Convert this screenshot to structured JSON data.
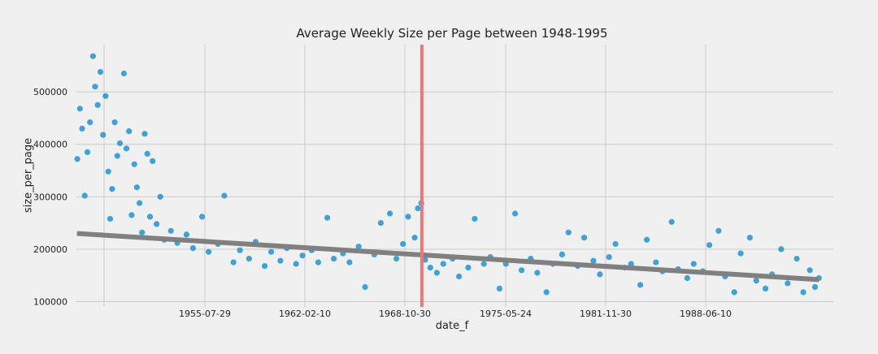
{
  "chart_data": {
    "type": "scatter",
    "title": "Average Weekly Size per Page between 1948-1995",
    "xlabel": "date_f",
    "ylabel": "size_per_page",
    "x_range": [
      "1947-12-01",
      "1996-05-01"
    ],
    "ylim": [
      90000,
      590000
    ],
    "x_tick_labels": [
      "1955-07-29",
      "1962-02-10",
      "1968-10-30",
      "1975-05-24",
      "1981-11-30",
      "1988-06-10"
    ],
    "y_tick_labels": [
      "100000",
      "200000",
      "300000",
      "400000",
      "500000"
    ],
    "y_ticks": [
      100000,
      200000,
      300000,
      400000,
      500000
    ],
    "grid": true,
    "vertical_line": {
      "x": "1970-01-15",
      "color": "#e8797a"
    },
    "trend_line": {
      "color": "#808080",
      "points": [
        {
          "x": "1948-01-01",
          "y": 230000
        },
        {
          "x": "1995-06-01",
          "y": 142000
        }
      ]
    },
    "scatter_color": "#1f94d3",
    "series": [
      {
        "points": [
          [
            "1948-01-10",
            372000
          ],
          [
            "1948-03-10",
            468000
          ],
          [
            "1948-05-01",
            430000
          ],
          [
            "1948-07-01",
            302000
          ],
          [
            "1948-09-01",
            385000
          ],
          [
            "1948-11-01",
            442000
          ],
          [
            "1949-01-10",
            568000
          ],
          [
            "1949-03-01",
            510000
          ],
          [
            "1949-05-01",
            475000
          ],
          [
            "1949-07-01",
            538000
          ],
          [
            "1949-09-01",
            418000
          ],
          [
            "1949-11-01",
            492000
          ],
          [
            "1950-01-01",
            348000
          ],
          [
            "1950-02-15",
            258000
          ],
          [
            "1950-04-01",
            315000
          ],
          [
            "1950-06-01",
            442000
          ],
          [
            "1950-08-01",
            378000
          ],
          [
            "1950-10-01",
            402000
          ],
          [
            "1951-01-01",
            535000
          ],
          [
            "1951-03-01",
            392000
          ],
          [
            "1951-05-01",
            425000
          ],
          [
            "1951-07-01",
            265000
          ],
          [
            "1951-09-01",
            362000
          ],
          [
            "1951-11-01",
            318000
          ],
          [
            "1952-01-01",
            288000
          ],
          [
            "1952-03-01",
            232000
          ],
          [
            "1952-05-01",
            420000
          ],
          [
            "1952-07-01",
            382000
          ],
          [
            "1952-09-01",
            262000
          ],
          [
            "1952-11-01",
            368000
          ],
          [
            "1953-02-01",
            248000
          ],
          [
            "1953-05-01",
            300000
          ],
          [
            "1953-08-01",
            218000
          ],
          [
            "1954-01-01",
            235000
          ],
          [
            "1954-06-01",
            212000
          ],
          [
            "1955-01-01",
            228000
          ],
          [
            "1955-06-01",
            202000
          ],
          [
            "1956-01-01",
            262000
          ],
          [
            "1956-06-01",
            195000
          ],
          [
            "1957-01-01",
            210000
          ],
          [
            "1957-06-01",
            302000
          ],
          [
            "1958-01-01",
            175000
          ],
          [
            "1958-06-01",
            198000
          ],
          [
            "1959-01-01",
            182000
          ],
          [
            "1959-06-01",
            214000
          ],
          [
            "1960-01-01",
            168000
          ],
          [
            "1960-06-01",
            195000
          ],
          [
            "1961-01-01",
            178000
          ],
          [
            "1961-06-01",
            202000
          ],
          [
            "1962-01-01",
            172000
          ],
          [
            "1962-06-01",
            188000
          ],
          [
            "1963-01-01",
            198000
          ],
          [
            "1963-06-01",
            175000
          ],
          [
            "1964-01-01",
            260000
          ],
          [
            "1964-06-01",
            182000
          ],
          [
            "1965-01-01",
            192000
          ],
          [
            "1965-06-01",
            175000
          ],
          [
            "1966-01-01",
            205000
          ],
          [
            "1966-06-01",
            128000
          ],
          [
            "1967-01-01",
            190000
          ],
          [
            "1967-06-01",
            250000
          ],
          [
            "1968-01-01",
            268000
          ],
          [
            "1968-06-01",
            182000
          ],
          [
            "1968-11-01",
            210000
          ],
          [
            "1969-03-01",
            262000
          ],
          [
            "1969-08-01",
            222000
          ],
          [
            "1969-10-15",
            278000
          ],
          [
            "1970-01-01",
            288000
          ],
          [
            "1970-04-01",
            180000
          ],
          [
            "1970-08-01",
            165000
          ],
          [
            "1971-01-01",
            155000
          ],
          [
            "1971-06-01",
            172000
          ],
          [
            "1972-01-01",
            182000
          ],
          [
            "1972-06-01",
            148000
          ],
          [
            "1973-01-01",
            165000
          ],
          [
            "1973-06-01",
            258000
          ],
          [
            "1974-01-01",
            172000
          ],
          [
            "1974-06-01",
            185000
          ],
          [
            "1975-01-01",
            125000
          ],
          [
            "1975-06-01",
            172000
          ],
          [
            "1976-01-01",
            268000
          ],
          [
            "1976-06-01",
            160000
          ],
          [
            "1977-01-01",
            182000
          ],
          [
            "1977-06-01",
            155000
          ],
          [
            "1978-01-01",
            118000
          ],
          [
            "1978-06-01",
            172000
          ],
          [
            "1979-01-01",
            190000
          ],
          [
            "1979-06-01",
            232000
          ],
          [
            "1980-01-01",
            168000
          ],
          [
            "1980-06-01",
            222000
          ],
          [
            "1981-01-01",
            178000
          ],
          [
            "1981-06-01",
            152000
          ],
          [
            "1982-01-01",
            185000
          ],
          [
            "1982-06-01",
            210000
          ],
          [
            "1983-01-01",
            165000
          ],
          [
            "1983-06-01",
            172000
          ],
          [
            "1984-01-01",
            132000
          ],
          [
            "1984-06-01",
            218000
          ],
          [
            "1985-01-01",
            175000
          ],
          [
            "1985-06-01",
            158000
          ],
          [
            "1986-01-01",
            252000
          ],
          [
            "1986-06-01",
            162000
          ],
          [
            "1987-01-01",
            145000
          ],
          [
            "1987-06-01",
            172000
          ],
          [
            "1988-01-01",
            158000
          ],
          [
            "1988-06-01",
            208000
          ],
          [
            "1989-01-01",
            235000
          ],
          [
            "1989-06-01",
            148000
          ],
          [
            "1990-01-01",
            118000
          ],
          [
            "1990-06-01",
            192000
          ],
          [
            "1991-01-01",
            222000
          ],
          [
            "1991-06-01",
            140000
          ],
          [
            "1992-01-01",
            125000
          ],
          [
            "1992-06-01",
            152000
          ],
          [
            "1993-01-01",
            200000
          ],
          [
            "1993-06-01",
            135000
          ],
          [
            "1994-01-01",
            182000
          ],
          [
            "1994-06-01",
            118000
          ],
          [
            "1994-11-01",
            160000
          ],
          [
            "1995-03-01",
            128000
          ],
          [
            "1995-06-01",
            145000
          ]
        ]
      }
    ]
  }
}
